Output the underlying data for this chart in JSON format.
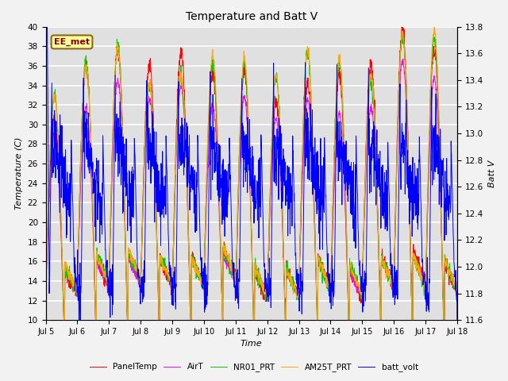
{
  "title": "Temperature and Batt V",
  "xlabel": "Time",
  "ylabel_left": "Temperature (C)",
  "ylabel_right": "Batt V",
  "ylim_left": [
    10,
    40
  ],
  "ylim_right": [
    11.6,
    13.8
  ],
  "xtick_labels": [
    "Jul 5",
    "Jul 6",
    "Jul 7",
    "Jul 8",
    "Jul 9",
    "Jul 10",
    "Jul 11",
    "Jul 12",
    "Jul 13",
    "Jul 14",
    "Jul 15",
    "Jul 16",
    "Jul 17",
    "Jul 18"
  ],
  "annotation_text": "EE_met",
  "annotation_color": "#8B0000",
  "bg_color": "#E0E0E0",
  "legend_entries": [
    "PanelTemp",
    "AirT",
    "NR01_PRT",
    "AM25T_PRT",
    "batt_volt"
  ],
  "legend_colors": [
    "#FF0000",
    "#FF00FF",
    "#00CC00",
    "#FFA500",
    "#0000FF"
  ],
  "num_days": 13,
  "pts_per_day": 144
}
